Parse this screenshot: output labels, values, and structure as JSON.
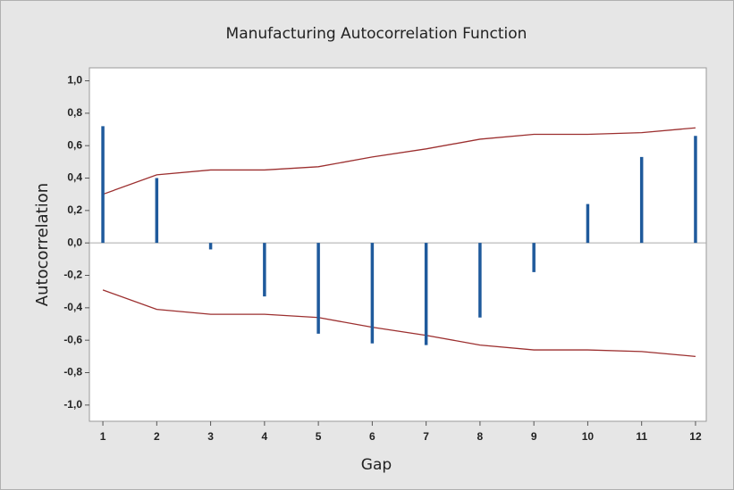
{
  "chart_data": {
    "type": "acf",
    "title": "Manufacturing Autocorrelation Function",
    "x_label": "Gap",
    "y_label": "Autocorrelation",
    "x": [
      1,
      2,
      3,
      4,
      5,
      6,
      7,
      8,
      9,
      10,
      11,
      12
    ],
    "values": [
      0.72,
      0.4,
      -0.04,
      -0.33,
      -0.56,
      -0.62,
      -0.63,
      -0.46,
      -0.18,
      0.24,
      0.53,
      0.66
    ],
    "color": "#1f5a9c",
    "upper_limit": [
      0.3,
      0.42,
      0.45,
      0.45,
      0.47,
      0.53,
      0.58,
      0.64,
      0.67,
      0.67,
      0.68,
      0.71
    ],
    "lower_limit": [
      -0.29,
      -0.41,
      -0.44,
      -0.44,
      -0.46,
      -0.52,
      -0.57,
      -0.63,
      -0.66,
      -0.66,
      -0.67,
      -0.7
    ],
    "limit_color": "#9c2f2f",
    "xlim": [
      0.75,
      12.2
    ],
    "xticks": [
      1,
      2,
      3,
      4,
      5,
      6,
      7,
      8,
      9,
      10,
      11,
      12
    ],
    "ylim": [
      -1.1,
      1.08
    ],
    "yticks": [
      {
        "value": 1.0,
        "label": "1,0"
      },
      {
        "value": 0.8,
        "label": "0,8"
      },
      {
        "value": 0.6,
        "label": "0,6"
      },
      {
        "value": 0.4,
        "label": "0,4"
      },
      {
        "value": 0.2,
        "label": "0,2"
      },
      {
        "value": 0.0,
        "label": "0,0"
      },
      {
        "value": -0.2,
        "label": "-0,2"
      },
      {
        "value": -0.4,
        "label": "-0,4"
      },
      {
        "value": -0.6,
        "label": "-0,6"
      },
      {
        "value": -0.8,
        "label": "-0,8"
      },
      {
        "value": -1.0,
        "label": "-1,0"
      }
    ]
  }
}
